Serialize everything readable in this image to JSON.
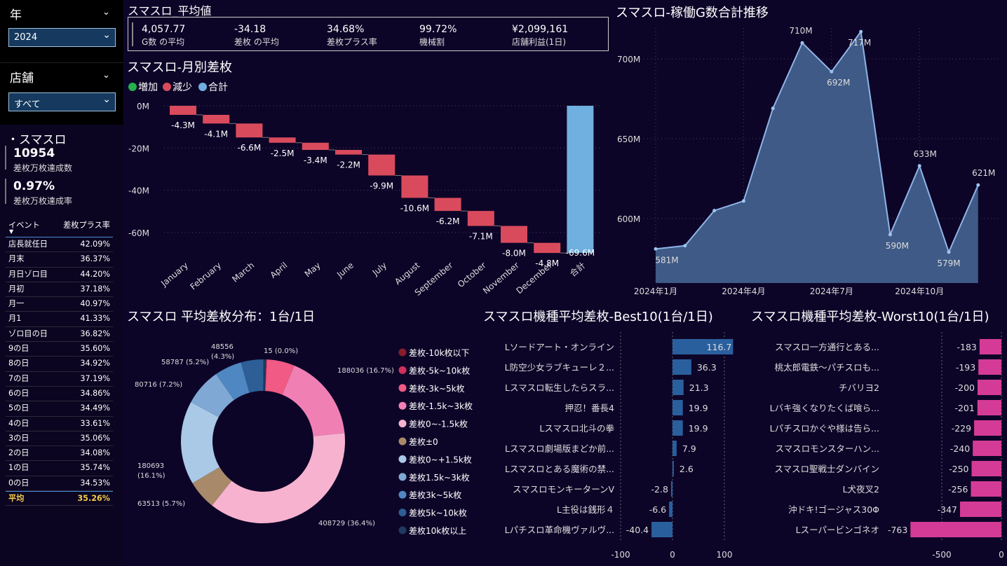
{
  "filters": {
    "year": {
      "title": "年",
      "value": "2024"
    },
    "store": {
      "title": "店舗",
      "value": "すべて"
    }
  },
  "kpi": {
    "section": "・スマスロ",
    "count": "10954",
    "count_label": "差枚万枚達成数",
    "rate": "0.97%",
    "rate_label": "差枚万枚達成率"
  },
  "event_table": {
    "headers": [
      "イベント",
      "差枚プラス率"
    ],
    "rows": [
      [
        "店長就任日",
        "42.09%"
      ],
      [
        "月末",
        "36.37%"
      ],
      [
        "月日ゾロ目",
        "44.20%"
      ],
      [
        "月初",
        "37.18%"
      ],
      [
        "月一",
        "40.97%"
      ],
      [
        "月1",
        "41.33%"
      ],
      [
        "ゾロ目の日",
        "36.82%"
      ],
      [
        "9の日",
        "35.60%"
      ],
      [
        "8の日",
        "34.92%"
      ],
      [
        "7の日",
        "37.19%"
      ],
      [
        "6の日",
        "34.86%"
      ],
      [
        "5の日",
        "34.49%"
      ],
      [
        "4の日",
        "33.61%"
      ],
      [
        "3の日",
        "35.06%"
      ],
      [
        "2の日",
        "34.08%"
      ],
      [
        "1の日",
        "35.74%"
      ],
      [
        "0の日",
        "34.53%"
      ]
    ],
    "total": [
      "平均",
      "35.26%"
    ]
  },
  "avg_cards": {
    "title": "スマスロ_平均値",
    "items": [
      {
        "value": "4,057.77",
        "label": "G数 の平均"
      },
      {
        "value": "-34.18",
        "label": "差枚 の平均"
      },
      {
        "value": "34.68%",
        "label": "差枚プラス率"
      },
      {
        "value": "99.72%",
        "label": "機械割"
      },
      {
        "value": "¥2,099,161",
        "label": "店舗利益(1日)"
      }
    ]
  },
  "colors": {
    "increase": "#22b14c",
    "decrease": "#d94b5c",
    "total": "#6fb0e0",
    "area": "#8fb4e6",
    "best": "#2a5f9e",
    "worst": "#d43b96"
  },
  "chart_data": [
    {
      "id": "monthly",
      "type": "bar",
      "title": "スマスロ-月別差枚",
      "legend": [
        "増加",
        "減少",
        "合計"
      ],
      "categories": [
        "January",
        "February",
        "March",
        "April",
        "May",
        "June",
        "July",
        "August",
        "September",
        "October",
        "November",
        "December",
        "合計"
      ],
      "values": [
        -4.3,
        -4.1,
        -6.6,
        -2.5,
        -3.4,
        -2.2,
        -9.9,
        -10.6,
        -6.2,
        -7.1,
        -8.0,
        -4.8,
        -69.6
      ],
      "labels": [
        "-4.3M",
        "-4.1M",
        "-6.6M",
        "-2.5M",
        "-3.4M",
        "-2.2M",
        "-9.9M",
        "-10.6M",
        "-6.2M",
        "-7.1M",
        "-8.0M",
        "-4.8M",
        "-69.6M"
      ],
      "yticks": [
        "0M",
        "-20M",
        "-40M",
        "-60M"
      ],
      "ylim": [
        -69.6,
        0
      ]
    },
    {
      "id": "trend",
      "type": "area",
      "title": "スマスロ-稼働G数合計推移",
      "x": [
        "2024-01",
        "2024-02",
        "2024-03",
        "2024-04",
        "2024-05",
        "2024-06",
        "2024-07",
        "2024-08",
        "2024-09",
        "2024-10",
        "2024-11",
        "2024-12"
      ],
      "values": [
        581,
        583,
        605,
        611,
        669,
        710,
        692,
        717,
        590,
        633,
        579,
        621
      ],
      "labels": [
        "581M",
        "",
        "",
        "",
        "",
        "710M",
        "692M",
        "717M",
        "590M",
        "633M",
        "579M",
        "621M"
      ],
      "yticks": [
        "700M",
        "650M",
        "600M"
      ],
      "xticks": [
        "2024年1月",
        "2024年4月",
        "2024年7月",
        "2024年10月"
      ],
      "ylim": [
        575,
        730
      ]
    },
    {
      "id": "donut",
      "type": "pie",
      "title": "スマスロ 平均差枚分布：1台/1日",
      "slices": [
        {
          "name": "差枚-10k枚以下",
          "value": 15,
          "label": "15 (0.0%)",
          "color": "#8b1c2a"
        },
        {
          "name": "差枚-5k~10k枚",
          "value": 1600,
          "label": "",
          "color": "#d0305a"
        },
        {
          "name": "差枚-3k~5k枚",
          "value": 60000,
          "label": "",
          "color": "#f05a84"
        },
        {
          "name": "差枚-1.5k~3k枚",
          "value": 188036,
          "label": "188036 (16.7%)",
          "color": "#f080b4"
        },
        {
          "name": "差枚0~-1.5k枚",
          "value": 408729,
          "label": "408729 (36.4%)",
          "color": "#f7b2cf"
        },
        {
          "name": "差枚±0",
          "value": 63513,
          "label": "63513 (5.7%)",
          "color": "#a8896a"
        },
        {
          "name": "差枚0~+1.5k枚",
          "value": 180693,
          "label": "180693 (16.1%)",
          "color": "#a9c9e6"
        },
        {
          "name": "差枚1.5k~3k枚",
          "value": 80716,
          "label": "80716 (7.2%)",
          "color": "#7fa8d4"
        },
        {
          "name": "差枚3k~5k枚",
          "value": 58787,
          "label": "58787 (5.2%)",
          "color": "#4f87c2"
        },
        {
          "name": "差枚5k~10k枚",
          "value": 48556,
          "label": "48556 (4.3%)",
          "color": "#2d5e96"
        },
        {
          "name": "差枚10k枚以上",
          "value": 6000,
          "label": "",
          "color": "#1e3a5e"
        }
      ]
    },
    {
      "id": "best",
      "type": "bar",
      "title": "スマスロ機種平均差枚-Best10(1台/1日)",
      "categories": [
        "Lソードアート・オンライン",
        "L防空少女ラブキューレ２...",
        "Lスマスロ転生したらスラ...",
        "押忍！番長4",
        "Lスマスロ北斗の拳",
        "Lスマスロ劇場版まどか前...",
        "Lスマスロとある魔術の禁...",
        "スマスロモンキーターンV",
        "L主役は銭形４",
        "Lパチスロ革命機ヴァルヴ..."
      ],
      "values": [
        116.7,
        36.3,
        21.3,
        19.9,
        19.9,
        7.9,
        2.6,
        -2.8,
        -6.6,
        -40.4
      ],
      "labels": [
        "116.7",
        "36.3",
        "21.3",
        "19.9",
        "19.9",
        "7.9",
        "2.6",
        "-2.8",
        "-6.6",
        "-40.4"
      ],
      "xticks": [
        "-100",
        "0",
        "100"
      ],
      "xlim": [
        -100,
        117
      ]
    },
    {
      "id": "worst",
      "type": "bar",
      "title": "スマスロ機種平均差枚-Worst10(1台/1日)",
      "categories": [
        "スマスロ一方通行とある...",
        "桃太郎電鉄～パチスロも...",
        "チバリヨ2",
        "Lバキ強くなりたくば喰ら...",
        "Lパチスロかぐや様は告ら...",
        "スマスロモンスターハン...",
        "スマスロ聖戦士ダンバイン",
        "L犬夜叉2",
        "沖ドキ!ゴージャス30Φ",
        "Lスーパービンゴネオ"
      ],
      "values": [
        -183,
        -193,
        -200,
        -201,
        -229,
        -240,
        -250,
        -256,
        -347,
        -763
      ],
      "labels": [
        "-183",
        "-193",
        "-200",
        "-201",
        "-229",
        "-240",
        "-250",
        "-256",
        "-347",
        "-763"
      ],
      "xticks": [
        "-500",
        "0"
      ],
      "xlim": [
        -763,
        0
      ]
    }
  ]
}
